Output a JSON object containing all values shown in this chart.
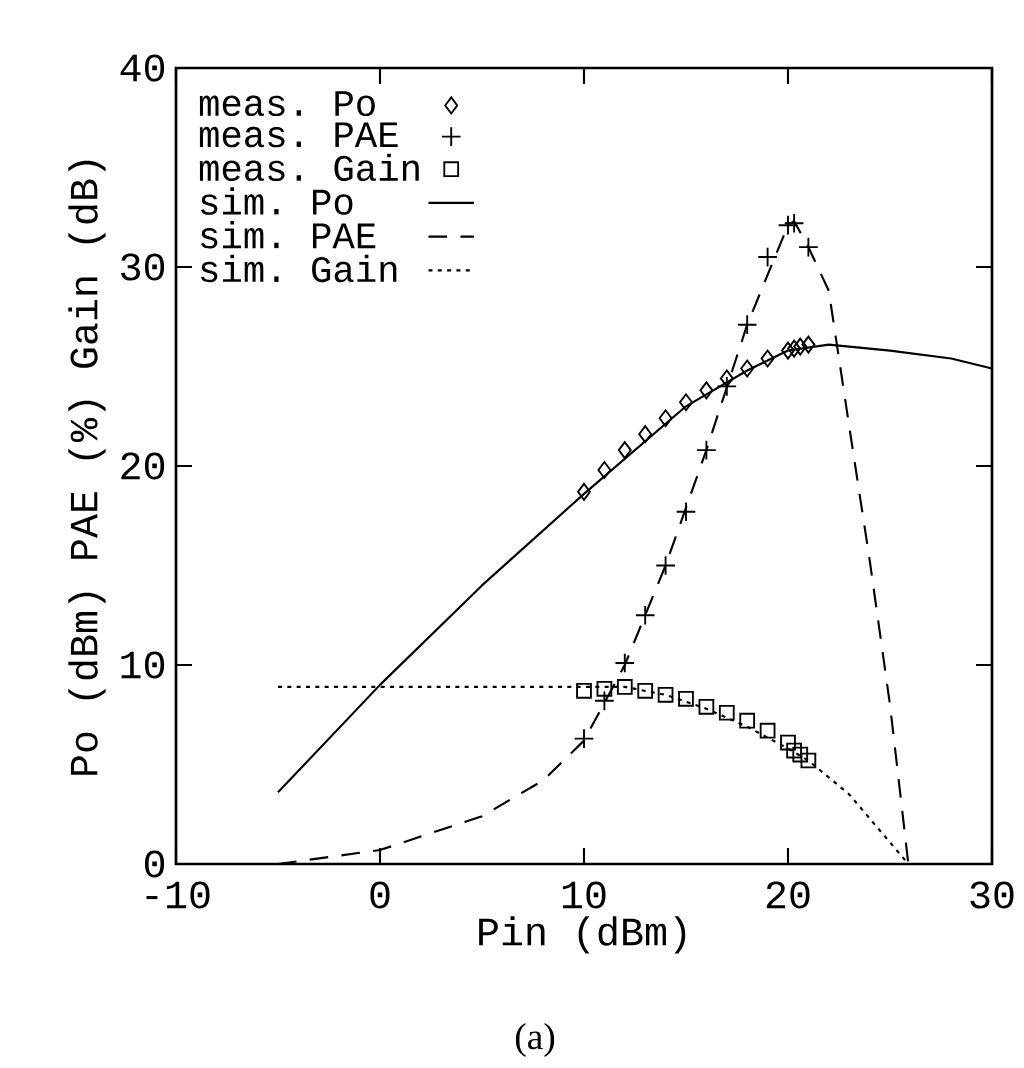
{
  "chart_data": {
    "type": "line",
    "xlabel": "Pin (dBm)",
    "ylabel": "Po (dBm) PAE (%) Gain (dB)",
    "xlim": [
      -10,
      30
    ],
    "xticks": [
      -10,
      0,
      10,
      20,
      30
    ],
    "ylim": [
      0,
      40
    ],
    "yticks": [
      0,
      10,
      20,
      30,
      40
    ],
    "legend": "top left",
    "grid": false,
    "annotations": [
      "(a)"
    ],
    "series": [
      {
        "name": "meas. Po",
        "type": "scatter",
        "marker": "diamond",
        "color": "#000000",
        "x": [
          10,
          11,
          12,
          13,
          14,
          15,
          16,
          17,
          18,
          19,
          20,
          20.3,
          20.6,
          21
        ],
        "values": [
          18.7,
          19.8,
          20.8,
          21.6,
          22.4,
          23.2,
          23.8,
          24.4,
          24.9,
          25.4,
          25.8,
          25.9,
          26.0,
          26.1
        ]
      },
      {
        "name": "meas. PAE",
        "type": "scatter",
        "marker": "cross",
        "color": "#000000",
        "x": [
          10,
          11,
          12,
          13,
          14,
          15,
          16,
          17,
          18,
          19,
          20,
          20.3,
          21
        ],
        "values": [
          6.3,
          8.2,
          10.1,
          12.5,
          15.0,
          17.7,
          20.8,
          24.0,
          27.1,
          30.5,
          32.1,
          32.2,
          31.0
        ]
      },
      {
        "name": "meas. Gain",
        "type": "scatter",
        "marker": "square",
        "color": "#000000",
        "x": [
          10,
          11,
          12,
          13,
          14,
          15,
          16,
          17,
          18,
          19,
          20,
          20.3,
          20.6,
          21
        ],
        "values": [
          8.7,
          8.8,
          8.9,
          8.7,
          8.5,
          8.3,
          7.9,
          7.6,
          7.2,
          6.7,
          6.1,
          5.7,
          5.5,
          5.2
        ]
      },
      {
        "name": "sim. Po",
        "line_style": "solid",
        "color": "#000000",
        "x": [
          -5,
          0,
          5,
          10,
          15,
          18,
          20,
          22,
          25,
          28,
          30
        ],
        "values": [
          3.6,
          9.0,
          14.0,
          18.6,
          23.0,
          24.8,
          25.8,
          26.1,
          25.8,
          25.4,
          24.9
        ]
      },
      {
        "name": "sim. PAE",
        "line_style": "dashed",
        "color": "#000000",
        "x": [
          -5,
          0,
          5,
          8,
          10,
          12,
          14,
          16,
          18,
          20,
          20.3,
          21,
          22,
          23,
          24,
          25,
          25.9
        ],
        "values": [
          0,
          0.7,
          2.4,
          4.2,
          6.2,
          10.0,
          15.0,
          20.8,
          27.1,
          32.1,
          32.3,
          31.0,
          28.8,
          22.0,
          15.3,
          8.0,
          0
        ]
      },
      {
        "name": "sim. Gain",
        "line_style": "dotted",
        "color": "#000000",
        "x": [
          -5,
          0,
          5,
          10,
          12,
          14,
          16,
          18,
          20,
          21,
          23,
          25.9
        ],
        "values": [
          8.9,
          8.9,
          8.9,
          8.9,
          8.9,
          8.5,
          7.8,
          6.9,
          5.8,
          5.2,
          3.5,
          0
        ]
      }
    ]
  }
}
